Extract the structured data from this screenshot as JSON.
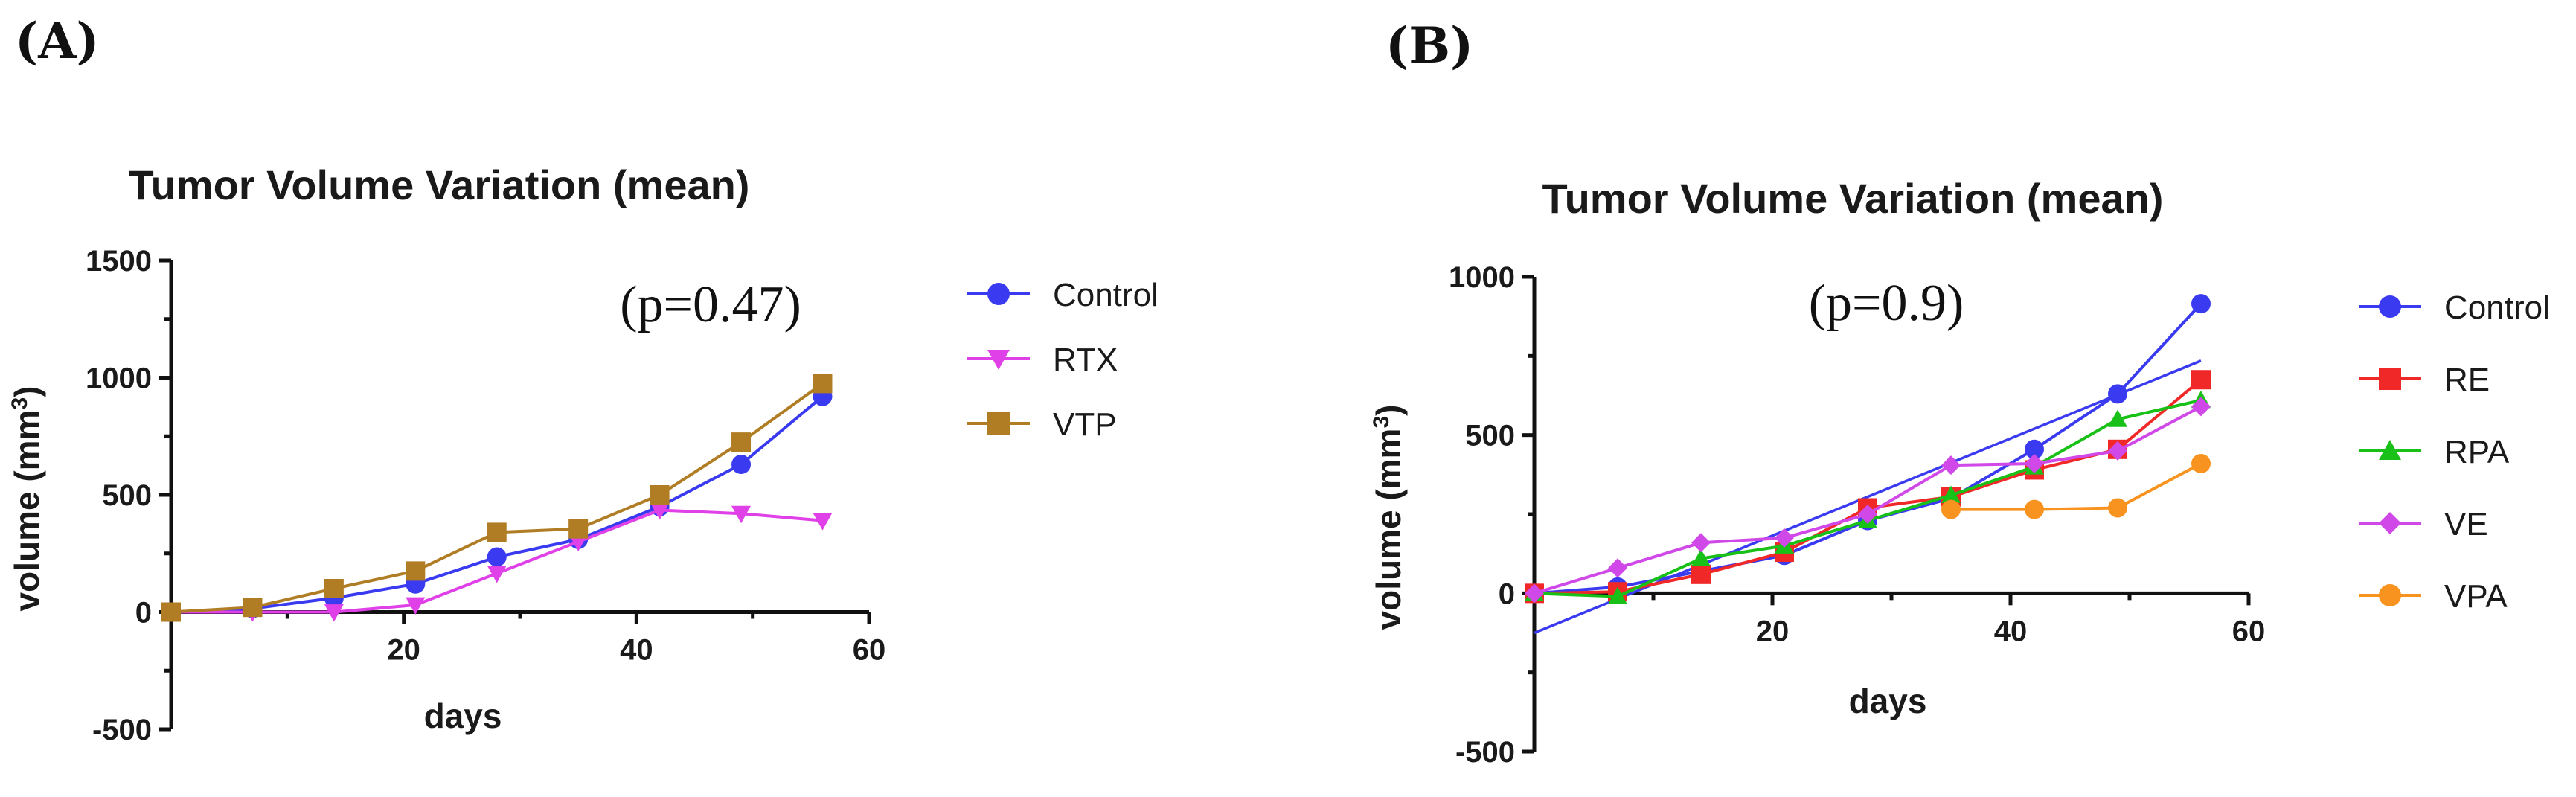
{
  "chart_data": [
    {
      "type": "line",
      "panel_label": "(A)",
      "title": "Tumor Volume Variation (mean)",
      "xlabel": "days",
      "ylabel_main": "volume (mm",
      "ylabel_sup": "3",
      "ylabel_close": ")",
      "xlim": [
        0,
        60
      ],
      "ylim": [
        -500,
        1500
      ],
      "xticks": [
        20,
        40,
        60
      ],
      "xtick_labels": [
        "20",
        "40",
        "60"
      ],
      "yticks": [
        -500,
        0,
        500,
        1000,
        1500
      ],
      "ytick_labels": [
        "-500",
        "0",
        "500",
        "1000",
        "1500"
      ],
      "annotation": "(p=0.47)",
      "legend": "right",
      "series": [
        {
          "name": "Control",
          "color": "#3a3af0",
          "marker": "circle",
          "x": [
            0,
            7,
            14,
            21,
            28,
            35,
            42,
            49,
            56
          ],
          "y": [
            0,
            15,
            60,
            120,
            235,
            310,
            450,
            630,
            920
          ]
        },
        {
          "name": "RTX",
          "color": "#e040e8",
          "marker": "triangle-down",
          "x": [
            0,
            7,
            14,
            21,
            28,
            35,
            42,
            49,
            56
          ],
          "y": [
            0,
            0,
            0,
            30,
            165,
            300,
            435,
            420,
            390
          ]
        },
        {
          "name": "VTP",
          "color": "#b07d25",
          "marker": "square",
          "x": [
            0,
            7,
            14,
            21,
            28,
            35,
            42,
            49,
            56
          ],
          "y": [
            0,
            20,
            100,
            175,
            340,
            355,
            500,
            725,
            975
          ]
        }
      ]
    },
    {
      "type": "line",
      "panel_label": "(B)",
      "title": "Tumor Volume Variation (mean)",
      "xlabel": "days",
      "ylabel_main": "volume (mm",
      "ylabel_sup": "3",
      "ylabel_close": ")",
      "xlim": [
        0,
        60
      ],
      "ylim": [
        -500,
        1000
      ],
      "xticks": [
        20,
        40,
        60
      ],
      "xtick_labels": [
        "20",
        "40",
        "60"
      ],
      "yticks": [
        -500,
        0,
        500,
        1000
      ],
      "ytick_labels": [
        "-500",
        "0",
        "500",
        "1000"
      ],
      "annotation": "(p=0.9)",
      "legend": "right",
      "trendline": {
        "series": "Control",
        "x": [
          0,
          56
        ],
        "y": [
          -125,
          735
        ]
      },
      "series": [
        {
          "name": "Control",
          "color": "#3a3af0",
          "marker": "circle",
          "x": [
            0,
            7,
            14,
            21,
            28,
            35,
            42,
            49,
            56
          ],
          "y": [
            0,
            20,
            70,
            120,
            230,
            300,
            455,
            630,
            915
          ]
        },
        {
          "name": "RE",
          "color": "#f02828",
          "marker": "square",
          "x": [
            0,
            7,
            14,
            21,
            28,
            35,
            42,
            49,
            56
          ],
          "y": [
            0,
            5,
            60,
            130,
            270,
            305,
            390,
            455,
            675
          ]
        },
        {
          "name": "RPA",
          "color": "#18c018",
          "marker": "triangle-up",
          "x": [
            0,
            7,
            14,
            21,
            28,
            35,
            42,
            49,
            56
          ],
          "y": [
            0,
            -10,
            110,
            150,
            230,
            310,
            400,
            550,
            610
          ]
        },
        {
          "name": "VE",
          "color": "#d048e8",
          "marker": "diamond",
          "x": [
            0,
            7,
            14,
            21,
            28,
            35,
            42,
            49,
            56
          ],
          "y": [
            0,
            80,
            160,
            175,
            250,
            405,
            410,
            450,
            590
          ]
        },
        {
          "name": "VPA",
          "color": "#f7931e",
          "marker": "circle",
          "x": [
            35,
            42,
            49,
            56
          ],
          "y": [
            265,
            265,
            270,
            410
          ]
        }
      ]
    }
  ]
}
